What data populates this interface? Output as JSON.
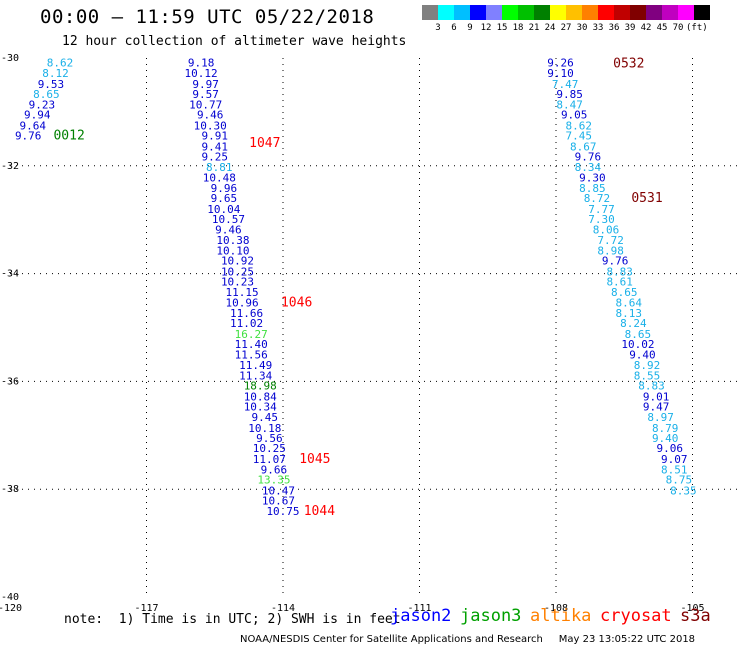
{
  "header": {
    "title": "00:00 – 11:59 UTC 05/22/2018",
    "subtitle": "12 hour collection of altimeter wave heights"
  },
  "legend": {
    "colors": [
      "#808080",
      "#00ffff",
      "#00bfff",
      "#0000ff",
      "#8080ff",
      "#00ff00",
      "#00c000",
      "#008000",
      "#ffff00",
      "#ffc000",
      "#ff8000",
      "#ff0000",
      "#c00000",
      "#800000",
      "#800080",
      "#c000c0",
      "#ff00ff",
      "#000000"
    ],
    "labels": [
      "3",
      "6",
      "9",
      "12",
      "15",
      "18",
      "21",
      "24",
      "27",
      "30",
      "33",
      "36",
      "39",
      "42",
      "45",
      "70"
    ],
    "unit": "(ft)"
  },
  "chart_data": {
    "type": "scatter",
    "xlim": [
      -120,
      -104
    ],
    "ylim": [
      -40,
      -30
    ],
    "x_ticks": [
      "-120",
      "-117",
      "-114",
      "-111",
      "-108",
      "-105"
    ],
    "y_ticks": [
      "-30",
      "-32",
      "-34",
      "-36",
      "-38",
      "-40"
    ],
    "grid": true,
    "colors": {
      "light": "#1ab0e8",
      "blue": "#0000d0",
      "green": "#008000",
      "lime": "#40e040"
    },
    "points": [
      {
        "x": -118.9,
        "y": -30.08,
        "label": "8.62",
        "color": "light"
      },
      {
        "x": -119.0,
        "y": -30.28,
        "label": "8.12",
        "color": "light"
      },
      {
        "x": -119.1,
        "y": -30.48,
        "label": "9.53",
        "color": "blue"
      },
      {
        "x": -119.2,
        "y": -30.67,
        "label": "8.65",
        "color": "light"
      },
      {
        "x": -119.3,
        "y": -30.86,
        "label": "9.23",
        "color": "blue"
      },
      {
        "x": -119.4,
        "y": -31.05,
        "label": "9.94",
        "color": "blue"
      },
      {
        "x": -119.5,
        "y": -31.25,
        "label": "9.64",
        "color": "blue"
      },
      {
        "x": -119.6,
        "y": -31.44,
        "label": "9.76",
        "color": "blue"
      },
      {
        "x": -115.8,
        "y": -30.08,
        "label": "9.18",
        "color": "blue"
      },
      {
        "x": -115.8,
        "y": -30.28,
        "label": "10.12",
        "color": "blue"
      },
      {
        "x": -115.7,
        "y": -30.48,
        "label": "9.97",
        "color": "blue"
      },
      {
        "x": -115.7,
        "y": -30.67,
        "label": "9.57",
        "color": "blue"
      },
      {
        "x": -115.7,
        "y": -30.86,
        "label": "10.77",
        "color": "blue"
      },
      {
        "x": -115.6,
        "y": -31.05,
        "label": "9.46",
        "color": "blue"
      },
      {
        "x": -115.6,
        "y": -31.25,
        "label": "10.30",
        "color": "blue"
      },
      {
        "x": -115.5,
        "y": -31.44,
        "label": "9.91",
        "color": "blue"
      },
      {
        "x": -115.5,
        "y": -31.64,
        "label": "9.41",
        "color": "blue"
      },
      {
        "x": -115.5,
        "y": -31.83,
        "label": "9.25",
        "color": "blue"
      },
      {
        "x": -115.4,
        "y": -32.02,
        "label": "8.81",
        "color": "light"
      },
      {
        "x": -115.4,
        "y": -32.22,
        "label": "10.48",
        "color": "blue"
      },
      {
        "x": -115.3,
        "y": -32.41,
        "label": "9.96",
        "color": "blue"
      },
      {
        "x": -115.3,
        "y": -32.6,
        "label": "9.65",
        "color": "blue"
      },
      {
        "x": -115.3,
        "y": -32.8,
        "label": "10.04",
        "color": "blue"
      },
      {
        "x": -115.2,
        "y": -32.99,
        "label": "10.57",
        "color": "blue"
      },
      {
        "x": -115.2,
        "y": -33.18,
        "label": "9.46",
        "color": "blue"
      },
      {
        "x": -115.1,
        "y": -33.38,
        "label": "10.38",
        "color": "blue"
      },
      {
        "x": -115.1,
        "y": -33.57,
        "label": "10.10",
        "color": "blue"
      },
      {
        "x": -115.0,
        "y": -33.76,
        "label": "10.92",
        "color": "blue"
      },
      {
        "x": -115.0,
        "y": -33.96,
        "label": "10.25",
        "color": "blue"
      },
      {
        "x": -115.0,
        "y": -34.15,
        "label": "10.23",
        "color": "blue"
      },
      {
        "x": -114.9,
        "y": -34.34,
        "label": "11.15",
        "color": "blue"
      },
      {
        "x": -114.9,
        "y": -34.54,
        "label": "10.96",
        "color": "blue"
      },
      {
        "x": -114.8,
        "y": -34.73,
        "label": "11.66",
        "color": "blue"
      },
      {
        "x": -114.8,
        "y": -34.92,
        "label": "11.02",
        "color": "blue"
      },
      {
        "x": -114.7,
        "y": -35.12,
        "label": "16.27",
        "color": "lime"
      },
      {
        "x": -114.7,
        "y": -35.31,
        "label": "11.40",
        "color": "blue"
      },
      {
        "x": -114.7,
        "y": -35.5,
        "label": "11.56",
        "color": "blue"
      },
      {
        "x": -114.6,
        "y": -35.7,
        "label": "11.49",
        "color": "blue"
      },
      {
        "x": -114.6,
        "y": -35.89,
        "label": "11.34",
        "color": "blue"
      },
      {
        "x": -114.5,
        "y": -36.08,
        "label": "18.98",
        "color": "green"
      },
      {
        "x": -114.5,
        "y": -36.28,
        "label": "10.84",
        "color": "blue"
      },
      {
        "x": -114.5,
        "y": -36.47,
        "label": "10.34",
        "color": "blue"
      },
      {
        "x": -114.4,
        "y": -36.66,
        "label": "9.45",
        "color": "blue"
      },
      {
        "x": -114.4,
        "y": -36.86,
        "label": "10.18",
        "color": "blue"
      },
      {
        "x": -114.3,
        "y": -37.05,
        "label": "9.56",
        "color": "blue"
      },
      {
        "x": -114.3,
        "y": -37.24,
        "label": "10.25",
        "color": "blue"
      },
      {
        "x": -114.3,
        "y": -37.44,
        "label": "11.07",
        "color": "blue"
      },
      {
        "x": -114.2,
        "y": -37.63,
        "label": "9.66",
        "color": "blue"
      },
      {
        "x": -114.2,
        "y": -37.82,
        "label": "13.35",
        "color": "lime"
      },
      {
        "x": -114.1,
        "y": -38.02,
        "label": "10.47",
        "color": "blue"
      },
      {
        "x": -114.1,
        "y": -38.21,
        "label": "10.67",
        "color": "blue"
      },
      {
        "x": -114.0,
        "y": -38.4,
        "label": "10.75",
        "color": "blue"
      },
      {
        "x": -107.9,
        "y": -30.08,
        "label": "9.26",
        "color": "blue"
      },
      {
        "x": -107.9,
        "y": -30.28,
        "label": "9.10",
        "color": "blue"
      },
      {
        "x": -107.8,
        "y": -30.48,
        "label": "7.47",
        "color": "light"
      },
      {
        "x": -107.7,
        "y": -30.67,
        "label": "9.85",
        "color": "blue"
      },
      {
        "x": -107.7,
        "y": -30.86,
        "label": "8.47",
        "color": "light"
      },
      {
        "x": -107.6,
        "y": -31.05,
        "label": "9.05",
        "color": "blue"
      },
      {
        "x": -107.5,
        "y": -31.25,
        "label": "8.62",
        "color": "light"
      },
      {
        "x": -107.5,
        "y": -31.44,
        "label": "7.45",
        "color": "light"
      },
      {
        "x": -107.4,
        "y": -31.64,
        "label": "8.67",
        "color": "light"
      },
      {
        "x": -107.3,
        "y": -31.83,
        "label": "9.76",
        "color": "blue"
      },
      {
        "x": -107.3,
        "y": -32.02,
        "label": "8.34",
        "color": "light"
      },
      {
        "x": -107.2,
        "y": -32.22,
        "label": "9.30",
        "color": "blue"
      },
      {
        "x": -107.2,
        "y": -32.41,
        "label": "8.85",
        "color": "light"
      },
      {
        "x": -107.1,
        "y": -32.6,
        "label": "8.72",
        "color": "light"
      },
      {
        "x": -107.0,
        "y": -32.8,
        "label": "7.77",
        "color": "light"
      },
      {
        "x": -107.0,
        "y": -32.99,
        "label": "7.30",
        "color": "light"
      },
      {
        "x": -106.9,
        "y": -33.18,
        "label": "8.06",
        "color": "light"
      },
      {
        "x": -106.8,
        "y": -33.38,
        "label": "7.72",
        "color": "light"
      },
      {
        "x": -106.8,
        "y": -33.57,
        "label": "8.98",
        "color": "light"
      },
      {
        "x": -106.7,
        "y": -33.76,
        "label": "9.76",
        "color": "blue"
      },
      {
        "x": -106.6,
        "y": -33.96,
        "label": "8.83",
        "color": "light"
      },
      {
        "x": -106.6,
        "y": -34.15,
        "label": "8.61",
        "color": "light"
      },
      {
        "x": -106.5,
        "y": -34.34,
        "label": "8.65",
        "color": "light"
      },
      {
        "x": -106.4,
        "y": -34.54,
        "label": "8.64",
        "color": "light"
      },
      {
        "x": -106.4,
        "y": -34.73,
        "label": "8.13",
        "color": "light"
      },
      {
        "x": -106.3,
        "y": -34.92,
        "label": "8.24",
        "color": "light"
      },
      {
        "x": -106.2,
        "y": -35.12,
        "label": "8.65",
        "color": "light"
      },
      {
        "x": -106.2,
        "y": -35.31,
        "label": "10.02",
        "color": "blue"
      },
      {
        "x": -106.1,
        "y": -35.5,
        "label": "9.40",
        "color": "blue"
      },
      {
        "x": -106.0,
        "y": -35.7,
        "label": "8.92",
        "color": "light"
      },
      {
        "x": -106.0,
        "y": -35.89,
        "label": "8.55",
        "color": "light"
      },
      {
        "x": -105.9,
        "y": -36.08,
        "label": "8.83",
        "color": "light"
      },
      {
        "x": -105.8,
        "y": -36.28,
        "label": "9.01",
        "color": "blue"
      },
      {
        "x": -105.8,
        "y": -36.47,
        "label": "9.47",
        "color": "blue"
      },
      {
        "x": -105.7,
        "y": -36.66,
        "label": "8.97",
        "color": "light"
      },
      {
        "x": -105.6,
        "y": -36.86,
        "label": "8.79",
        "color": "light"
      },
      {
        "x": -105.6,
        "y": -37.05,
        "label": "9.40",
        "color": "light"
      },
      {
        "x": -105.5,
        "y": -37.24,
        "label": "9.06",
        "color": "blue"
      },
      {
        "x": -105.4,
        "y": -37.44,
        "label": "9.07",
        "color": "blue"
      },
      {
        "x": -105.4,
        "y": -37.63,
        "label": "8.51",
        "color": "light"
      },
      {
        "x": -105.3,
        "y": -37.82,
        "label": "8.75",
        "color": "light"
      },
      {
        "x": -105.2,
        "y": -38.02,
        "label": "8.35",
        "color": "light"
      }
    ],
    "time_labels": [
      {
        "x": -118.7,
        "y": -31.44,
        "label": "0012",
        "color": "#008000"
      },
      {
        "x": -114.4,
        "y": -31.58,
        "label": "1047",
        "color": "#ff0000"
      },
      {
        "x": -113.7,
        "y": -34.54,
        "label": "1046",
        "color": "#ff0000"
      },
      {
        "x": -113.3,
        "y": -37.44,
        "label": "1045",
        "color": "#ff0000"
      },
      {
        "x": -113.2,
        "y": -38.4,
        "label": "1044",
        "color": "#ff0000"
      },
      {
        "x": -106.4,
        "y": -30.1,
        "label": "0532",
        "color": "#800000"
      },
      {
        "x": -106.0,
        "y": -32.6,
        "label": "0531",
        "color": "#800000"
      }
    ]
  },
  "footer": {
    "note": "note:  1) Time is in UTC; 2) SWH is in feet",
    "satellites": [
      {
        "name": "jason2",
        "color": "#0000ff"
      },
      {
        "name": "jason3",
        "color": "#00a000"
      },
      {
        "name": "altika",
        "color": "#ff8000"
      },
      {
        "name": "cryosat",
        "color": "#ff0000"
      },
      {
        "name": "s3a",
        "color": "#800000"
      }
    ],
    "credit": "NOAA/NESDIS Center for Satellite Applications and Research     May 23 13:05:22 UTC 2018"
  }
}
